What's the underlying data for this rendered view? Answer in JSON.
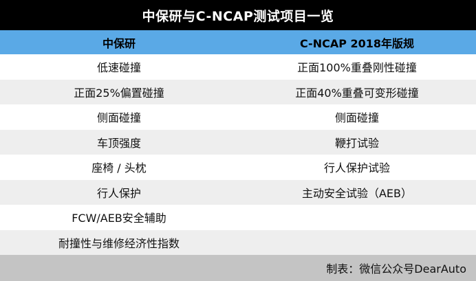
{
  "title": "中保研与C-NCAP测试项目一览",
  "columns": [
    "中保研",
    "C-NCAP 2018年版规"
  ],
  "rows": [
    [
      "低速碰撞",
      "正面100%重叠刚性碰撞"
    ],
    [
      "正面25%偏置碰撞",
      "正面40%重叠可变形碰撞"
    ],
    [
      "侧面碰撞",
      "侧面碰撞"
    ],
    [
      "车顶强度",
      "鞭打试验"
    ],
    [
      "座椅 / 头枕",
      "行人保护试验"
    ],
    [
      "行人保护",
      "主动安全试验（AEB）"
    ],
    [
      "FCW/AEB安全辅助",
      ""
    ],
    [
      "耐撞性与维修经济性指数",
      ""
    ]
  ],
  "footer": "制表：微信公众号DearAuto",
  "colors": {
    "title_bg": "#000000",
    "header_bg": "#5aa9e6",
    "row_alt_bg": "#eeeeee",
    "footer_bg": "#c4c4c4"
  }
}
